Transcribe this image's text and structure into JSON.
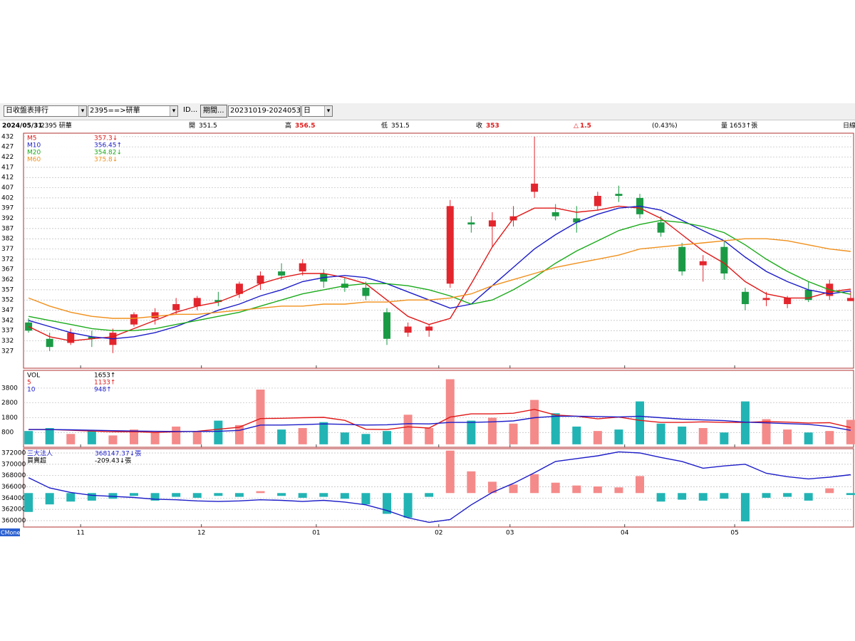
{
  "toolbar": {
    "list": "日收盤表排行",
    "stock": "2395==>研華",
    "id": "ID...",
    "period_button": "期間...",
    "period": "20231019-20240531",
    "freq": "日"
  },
  "info": {
    "date": "2024/05/31",
    "stock": "2395 研華",
    "items": [
      {
        "label": "開",
        "value": 351.5
      },
      {
        "label": "高",
        "value": 356.5
      },
      {
        "label": "低",
        "value": 351.5
      },
      {
        "label": "收",
        "value": 353
      },
      {
        "label": "△",
        "value": 1.5
      }
    ],
    "pct": "(0.43%)",
    "volume": "量 1653↑張",
    "freq": "日線"
  },
  "brand": "CMoney",
  "chart_data": [
    {
      "type": "candlestick",
      "ylim": [
        318.6,
        433.7
      ],
      "yticks": [
        327,
        332,
        337,
        342,
        347,
        352,
        357,
        362,
        367,
        372,
        377,
        382,
        387,
        392,
        397,
        402,
        407,
        412,
        417,
        422,
        427,
        432
      ],
      "grid": true,
      "up_color": "#e3262e",
      "down_color": "#1b9a45",
      "candles": {
        "open": [
          341,
          333,
          331,
          334,
          330,
          340,
          343,
          347,
          349,
          352,
          355,
          360,
          366,
          366,
          365,
          360,
          358,
          346,
          336,
          337,
          360,
          390,
          388,
          391,
          405,
          395,
          392,
          398,
          404,
          402,
          390,
          378,
          369,
          378,
          356,
          352,
          350,
          357,
          354,
          351.5
        ],
        "high": [
          343,
          336,
          338,
          337,
          338,
          346,
          348,
          353,
          354,
          356,
          361,
          366,
          370,
          372,
          367,
          363,
          361,
          348,
          341,
          340,
          401,
          393,
          395,
          398,
          432,
          399,
          398,
          405,
          408,
          404,
          393,
          380,
          374,
          381,
          358,
          356,
          354,
          361,
          362,
          356.5
        ],
        "low": [
          336,
          327,
          330,
          329,
          326,
          339,
          340,
          345,
          347,
          349,
          353,
          357,
          362,
          364,
          358,
          356,
          352,
          330,
          334,
          334,
          358,
          385,
          378,
          388,
          402,
          391,
          385,
          396,
          400,
          392,
          383,
          364,
          361,
          362,
          347,
          349,
          348,
          351,
          352,
          351.5
        ],
        "close": [
          337,
          329,
          336,
          333,
          336,
          345,
          346,
          350,
          353,
          351,
          360,
          364,
          364,
          370,
          361,
          358,
          354,
          333,
          339,
          339,
          398,
          389,
          391,
          393,
          409,
          393,
          390,
          403,
          403,
          394,
          385,
          366,
          371,
          365,
          350,
          353,
          353,
          352,
          360,
          353
        ]
      },
      "series": [
        {
          "name": "M5",
          "color": "#e01818",
          "last_label": "357.3↓",
          "values": [
            339,
            334,
            332,
            333,
            334,
            338,
            342,
            346,
            349,
            351,
            355,
            360,
            363,
            365,
            365,
            363,
            360,
            352,
            344,
            340,
            343,
            360,
            378,
            392,
            397,
            397,
            395,
            396,
            398,
            397,
            392,
            384,
            376,
            370,
            361,
            355,
            353,
            353,
            356,
            357.3
          ]
        },
        {
          "name": "M10",
          "color": "#1c1cc8",
          "last_label": "356.45↑",
          "values": [
            342,
            339,
            336,
            334,
            333,
            334,
            336,
            339,
            343,
            347,
            350,
            354,
            357,
            361,
            363,
            364,
            363,
            360,
            356,
            352,
            348,
            350,
            359,
            368,
            377,
            384,
            390,
            394,
            397,
            398,
            396,
            391,
            386,
            381,
            373,
            366,
            361,
            357,
            355,
            356.45
          ]
        },
        {
          "name": "M20",
          "color": "#1aaa1a",
          "last_label": "354.82↓",
          "values": [
            344,
            342,
            340,
            338,
            337,
            337,
            338,
            340,
            342,
            344,
            346,
            349,
            352,
            355,
            357,
            359,
            360,
            360,
            359,
            357,
            354,
            350,
            352,
            357,
            363,
            370,
            376,
            381,
            386,
            389,
            391,
            390,
            388,
            385,
            379,
            372,
            366,
            361,
            357,
            354.82
          ]
        },
        {
          "name": "M60",
          "color": "#f0901c",
          "last_label": "375.8↓",
          "values": [
            353,
            349,
            346,
            344,
            343,
            343,
            344,
            345,
            345,
            346,
            347,
            348,
            349,
            349,
            350,
            350,
            351,
            351,
            352,
            352,
            353,
            355,
            359,
            362,
            365,
            368,
            370,
            372,
            374,
            377,
            378,
            379,
            380,
            381,
            382,
            382,
            381,
            379,
            377,
            375.8
          ]
        }
      ]
    },
    {
      "type": "bar",
      "ylim": [
        -200,
        5000
      ],
      "yticks": [
        800,
        1800,
        2800,
        3800
      ],
      "grid": true,
      "up_color": "#f58a8a",
      "down_color": "#22b4b4",
      "series": [
        {
          "name": "VOL",
          "color": "#000000",
          "last_label": "1653↑",
          "values": [
            900,
            1100,
            700,
            900,
            600,
            1000,
            800,
            1200,
            900,
            1600,
            1300,
            3700,
            1000,
            1100,
            1500,
            800,
            700,
            900,
            2000,
            1100,
            4400,
            1600,
            1800,
            1400,
            3000,
            2100,
            1200,
            900,
            1000,
            2900,
            1400,
            1200,
            1100,
            800,
            2900,
            1700,
            1000,
            800,
            900,
            1653
          ]
        },
        {
          "name": "5",
          "color": "#e01818",
          "last_label": "1133↑",
          "values": [
            1000,
            1000,
            950,
            900,
            850,
            860,
            800,
            850,
            880,
            1020,
            1160,
            1740,
            1760,
            1800,
            1820,
            1620,
            1020,
            1000,
            1180,
            1100,
            1840,
            2060,
            2060,
            2100,
            2360,
            1980,
            1900,
            1720,
            1840,
            1620,
            1480,
            1480,
            1520,
            1480,
            1480,
            1540,
            1500,
            1440,
            1460,
            1133
          ]
        },
        {
          "name": "10",
          "color": "#1c1cc8",
          "last_label": "948↑",
          "values": [
            1000,
            1000,
            980,
            950,
            920,
            900,
            880,
            870,
            870,
            880,
            940,
            1300,
            1300,
            1330,
            1380,
            1350,
            1300,
            1320,
            1400,
            1380,
            1480,
            1480,
            1520,
            1580,
            1800,
            1900,
            1900,
            1880,
            1850,
            1900,
            1800,
            1700,
            1650,
            1600,
            1500,
            1450,
            1400,
            1350,
            1200,
            948
          ]
        }
      ]
    },
    {
      "type": "combo",
      "ylim": [
        358860,
        372760
      ],
      "yticks": [
        360000,
        362000,
        364000,
        366000,
        368000,
        370000,
        372000
      ],
      "y2lim": [
        -3600,
        4700
      ],
      "grid": true,
      "xlim": [
        -0.24,
        39.14
      ],
      "xticks": [
        {
          "value": 2.47,
          "label": "11"
        },
        {
          "value": 8.2,
          "label": "12"
        },
        {
          "value": 13.65,
          "label": "01"
        },
        {
          "value": 19.46,
          "label": "02"
        },
        {
          "value": 22.84,
          "label": "03"
        },
        {
          "value": 28.28,
          "label": "04"
        },
        {
          "value": 33.5,
          "label": "05"
        }
      ],
      "series": [
        {
          "name": "三大法人",
          "color": "#1c1cc8",
          "last_label": "368147.37↓張",
          "values": [
            367600,
            365800,
            365000,
            364500,
            364300,
            364100,
            363800,
            363700,
            363500,
            363400,
            363500,
            363700,
            363600,
            363400,
            363600,
            363300,
            362800,
            361800,
            360500,
            359700,
            360200,
            362800,
            365000,
            366600,
            368500,
            370500,
            371000,
            371500,
            372200,
            372000,
            371200,
            370500,
            369300,
            369700,
            370000,
            368400,
            367800,
            367400,
            367700,
            368147.37
          ]
        },
        {
          "name": "買賣超",
          "axis": "y2",
          "up_color": "#f58a8a",
          "down_color": "#22b4b4",
          "last_label": "-209.43↓張",
          "values": [
            -2000,
            -1200,
            -900,
            -800,
            -600,
            -300,
            -800,
            -400,
            -500,
            -300,
            -400,
            200,
            -300,
            -500,
            -400,
            -600,
            -1200,
            -2200,
            -2600,
            -400,
            4500,
            2300,
            1200,
            900,
            2000,
            1100,
            800,
            700,
            600,
            1800,
            -900,
            -700,
            -800,
            -600,
            -3000,
            -500,
            -400,
            -800,
            500,
            -209.43
          ]
        }
      ]
    }
  ]
}
